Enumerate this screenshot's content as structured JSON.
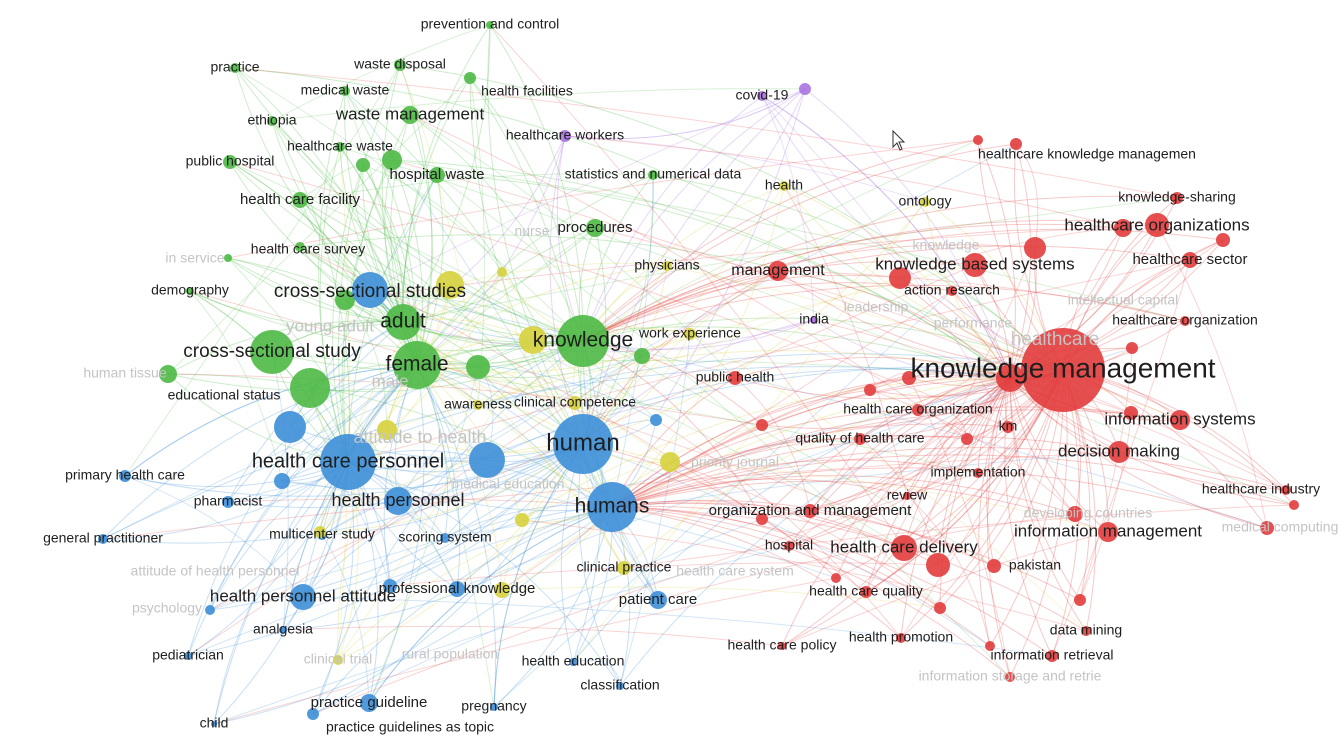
{
  "clusters": [
    {
      "color": "#4cb944",
      "labels": [
        "prevention and control",
        "practice",
        "waste disposal",
        "medical waste",
        "health facilities",
        "ethiopia",
        "waste management",
        "public hospital",
        "healthcare waste",
        "hospital waste",
        "statistics and numerical data",
        "health care facility",
        "health care survey",
        "demography",
        "cross-sectional studies",
        "adult",
        "cross-sectional study",
        "female",
        "knowledge",
        "educational status",
        "procedures"
      ],
      "faded_labels": [
        "in service",
        "young adult",
        "male",
        "human tissue"
      ]
    },
    {
      "color": "#3d8fd8",
      "labels": [
        "health care personnel",
        "human",
        "humans",
        "health personnel",
        "primary health care",
        "pharmacist",
        "general practitioner",
        "multicenter study",
        "scoring system",
        "health personnel attitude",
        "professional knowledge",
        "patient care",
        "analgesia",
        "pediatrician",
        "health education",
        "classification",
        "practice guideline",
        "pregnancy",
        "child",
        "practice guidelines as topic"
      ],
      "faded_labels": [
        "attitude of health personnel",
        "psychology",
        "attitude to health",
        "rural population"
      ]
    },
    {
      "color": "#d6d23c",
      "labels": [
        "physicians",
        "work experience",
        "clinical competence",
        "awareness",
        "clinical practice",
        "health",
        "ontology"
      ],
      "faded_labels": [
        "nurse",
        "priority journal",
        "medical education",
        "clinical trial"
      ]
    },
    {
      "color": "#a874e0",
      "labels": [
        "covid-19",
        "healthcare workers",
        "india"
      ],
      "faded_labels": []
    },
    {
      "color": "#e23c3c",
      "labels": [
        "knowledge management",
        "healthcare knowledge managemen",
        "knowledge-sharing",
        "healthcare organizations",
        "healthcare sector",
        "management",
        "knowledge based systems",
        "action research",
        "healthcare organization",
        "public health",
        "health care organization",
        "quality of health care",
        "km",
        "information systems",
        "decision making",
        "implementation",
        "review",
        "healthcare industry",
        "organization and management",
        "information management",
        "hospital",
        "health care delivery",
        "pakistan",
        "health care quality",
        "health care policy",
        "health promotion",
        "data mining",
        "information retrieval"
      ],
      "faded_labels": [
        "healthcare",
        "leadership",
        "intellectual capital",
        "performance",
        "developing countries",
        "medical computing",
        "information storage and retrie",
        "knowledge",
        "health care system"
      ]
    }
  ]
}
